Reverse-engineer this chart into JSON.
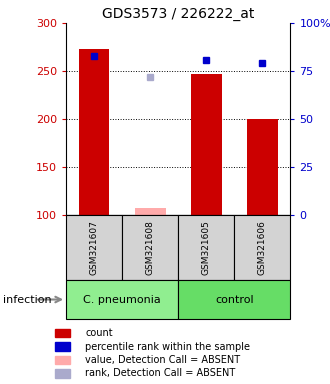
{
  "title": "GDS3573 / 226222_at",
  "samples": [
    "GSM321607",
    "GSM321608",
    "GSM321605",
    "GSM321606"
  ],
  "ylim": [
    100,
    300
  ],
  "y2lim": [
    0,
    100
  ],
  "yticks": [
    100,
    150,
    200,
    250,
    300
  ],
  "y2ticks": [
    0,
    25,
    50,
    75,
    100
  ],
  "y2ticklabels": [
    "0",
    "25",
    "50",
    "75",
    "100%"
  ],
  "bar_values": [
    273,
    107,
    247,
    200
  ],
  "bar_bottom": 100,
  "bar_color": "#cc0000",
  "bar_absent_color": "#ffaaaa",
  "bar_absent": [
    false,
    true,
    false,
    false
  ],
  "percentile_values": [
    83,
    null,
    81,
    79
  ],
  "percentile_absent_values": [
    null,
    72,
    null,
    null
  ],
  "percentile_color": "#0000cc",
  "percentile_absent_color": "#aaaacc",
  "sample_box_color": "#d3d3d3",
  "group_defs": [
    {
      "label": "C. pneumonia",
      "start": 0,
      "end": 1,
      "color": "#90ee90"
    },
    {
      "label": "control",
      "start": 2,
      "end": 3,
      "color": "#66dd66"
    }
  ],
  "infection_label": "infection",
  "bar_width": 0.55,
  "marker_size": 5,
  "legend_items": [
    {
      "label": "count",
      "color": "#cc0000"
    },
    {
      "label": "percentile rank within the sample",
      "color": "#0000cc"
    },
    {
      "label": "value, Detection Call = ABSENT",
      "color": "#ffaaaa"
    },
    {
      "label": "rank, Detection Call = ABSENT",
      "color": "#aaaacc"
    }
  ],
  "ytick_color": "#cc0000",
  "y2tick_color": "#0000cc",
  "fig_width": 3.3,
  "fig_height": 3.84,
  "dpi": 100
}
